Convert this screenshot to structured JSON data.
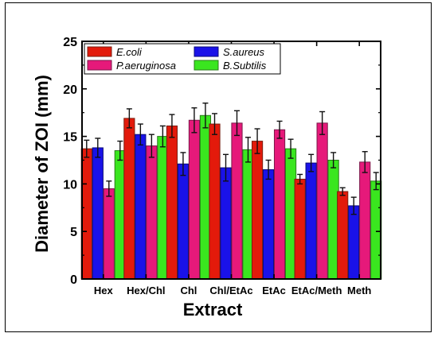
{
  "chart_data": {
    "type": "bar",
    "title": "",
    "xlabel": "Extract",
    "ylabel": "Diameter of ZOI (mm)",
    "ylim": [
      0,
      25
    ],
    "yticks": [
      0,
      5,
      10,
      15,
      20,
      25
    ],
    "grid": false,
    "legend_position": "top-left",
    "legend_columns": 2,
    "error_bars": true,
    "categories": [
      "Hex",
      "Hex/Chl",
      "Chl",
      "Chl/EtAc",
      "EtAc",
      "EtAc/Meth",
      "Meth"
    ],
    "series": [
      {
        "name": "E.coli",
        "color": "#e31a0b",
        "edge_color": "#7a1f10",
        "values": [
          13.7,
          16.9,
          16.1,
          16.3,
          14.5,
          10.5,
          9.2
        ],
        "errors": [
          0.9,
          1.0,
          1.2,
          1.1,
          1.3,
          0.5,
          0.4
        ]
      },
      {
        "name": "S.aureus",
        "color": "#1a12e8",
        "edge_color": "#0a0a7a",
        "values": [
          13.8,
          15.2,
          12.1,
          11.7,
          11.5,
          12.2,
          7.7
        ],
        "errors": [
          1.0,
          1.1,
          1.2,
          1.4,
          1.0,
          0.9,
          0.9
        ]
      },
      {
        "name": "P.aeruginosa",
        "color": "#e6197a",
        "edge_color": "#7a1a4a",
        "values": [
          9.5,
          14.0,
          16.7,
          16.4,
          15.7,
          16.4,
          12.3
        ],
        "errors": [
          0.8,
          1.2,
          1.3,
          1.3,
          0.9,
          1.2,
          1.1
        ]
      },
      {
        "name": "B.Subtilis",
        "color": "#3ae61f",
        "edge_color": "#2a7a1a",
        "values": [
          13.5,
          15.0,
          17.2,
          13.6,
          13.7,
          12.5,
          10.3
        ],
        "errors": [
          1.0,
          1.1,
          1.3,
          1.3,
          1.0,
          0.8,
          0.9
        ]
      }
    ]
  }
}
